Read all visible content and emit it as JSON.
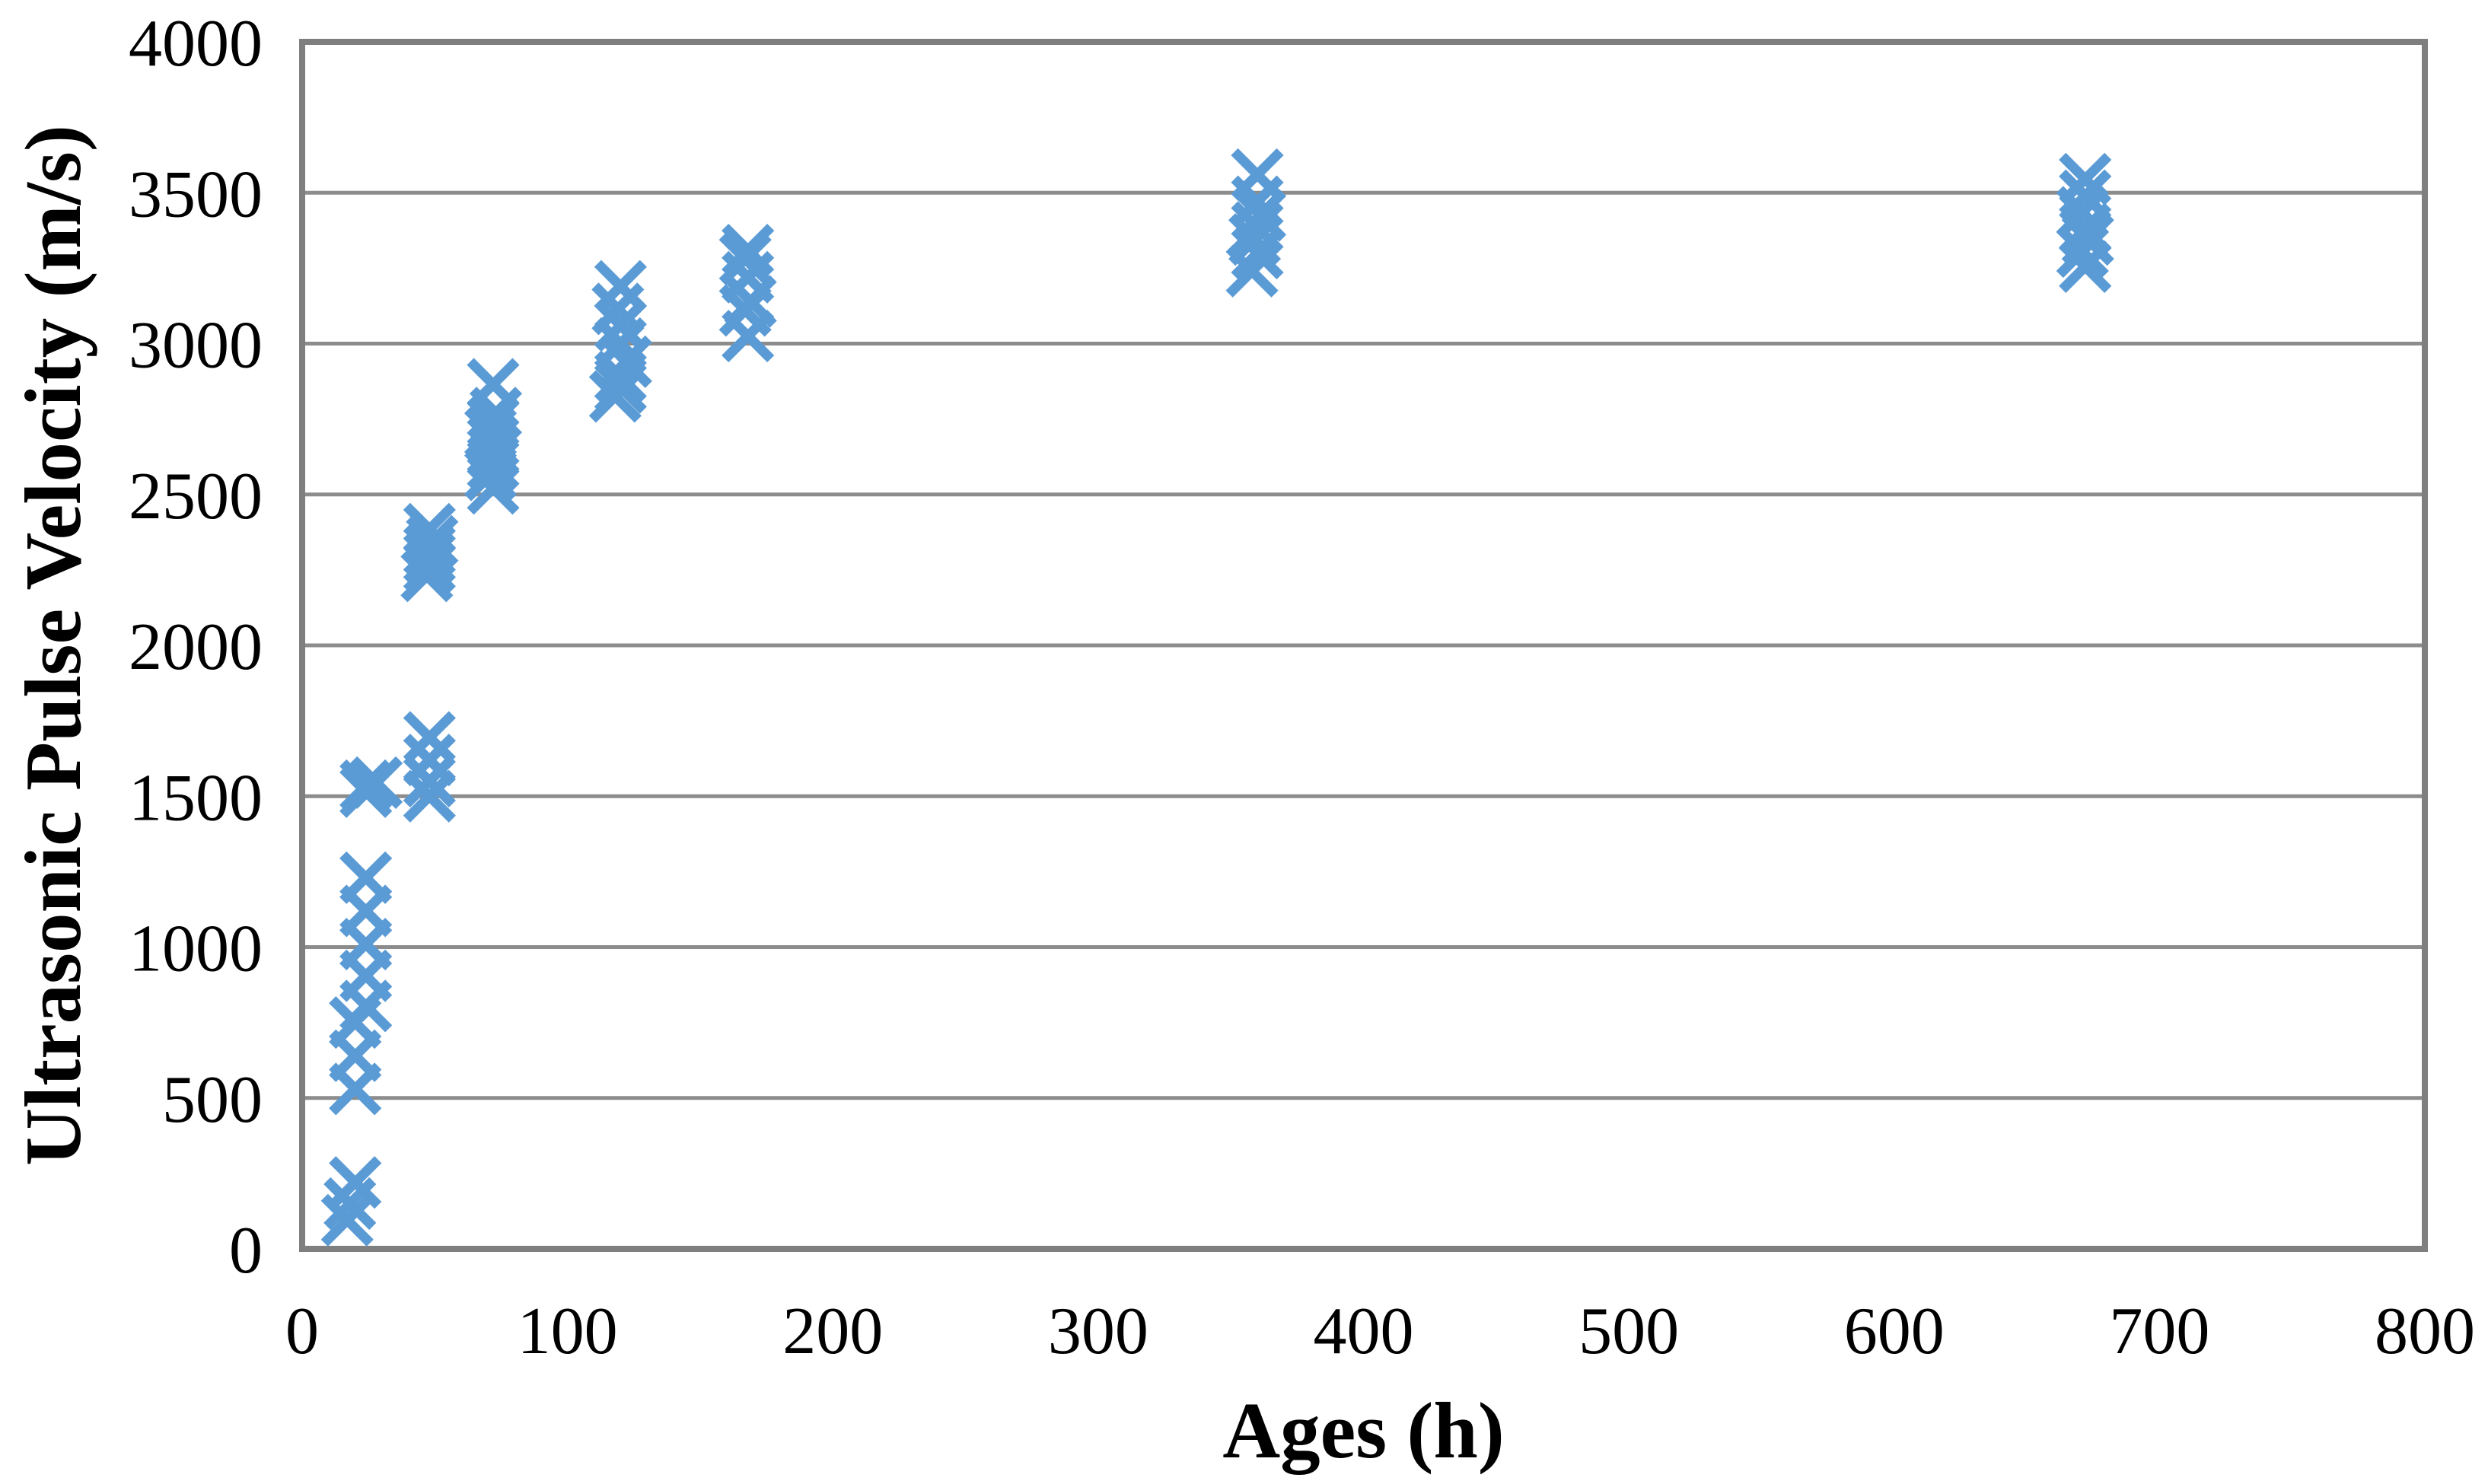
{
  "page": {
    "background_color": "#ffffff",
    "description": "Scatter chart of ultrasonic pulse velocity versus specimen age"
  },
  "chart_data": {
    "type": "scatter",
    "title": "",
    "xlabel": "Ages (h)",
    "ylabel": "Ultrasonic Pulse Velocity (m/s)",
    "xlim": [
      0,
      800
    ],
    "ylim": [
      0,
      4000
    ],
    "x_ticks": [
      0,
      100,
      200,
      300,
      400,
      500,
      600,
      700,
      800
    ],
    "y_ticks": [
      0,
      500,
      1000,
      1500,
      2000,
      2500,
      3000,
      3500,
      4000
    ],
    "grid": "horizontal-only",
    "legend_position": "none",
    "marker_shape": "x",
    "marker_color": "#5B9BD5",
    "marker_size_px": 60,
    "marker_stroke_px": 13,
    "axis_line_color": "#7F7F7F",
    "gridline_color": "#8C8C8C",
    "series": [
      {
        "name": "Ultrasonic Pulse Velocity",
        "points": [
          [
            17,
            95
          ],
          [
            18,
            150
          ],
          [
            20,
            220
          ],
          [
            20,
            530
          ],
          [
            20,
            640
          ],
          [
            20,
            750
          ],
          [
            24,
            805
          ],
          [
            24,
            905
          ],
          [
            24,
            1010
          ],
          [
            24,
            1120
          ],
          [
            24,
            1230
          ],
          [
            24,
            1515
          ],
          [
            24,
            1535
          ],
          [
            28,
            1545
          ],
          [
            48,
            1500
          ],
          [
            48,
            1550
          ],
          [
            48,
            1620
          ],
          [
            48,
            1695
          ],
          [
            47,
            2230
          ],
          [
            48,
            2260
          ],
          [
            48,
            2290
          ],
          [
            48,
            2315
          ],
          [
            49,
            2345
          ],
          [
            48,
            2385
          ],
          [
            72,
            2520
          ],
          [
            71,
            2565
          ],
          [
            72,
            2600
          ],
          [
            72,
            2640
          ],
          [
            72,
            2675
          ],
          [
            71,
            2705
          ],
          [
            72,
            2740
          ],
          [
            73,
            2770
          ],
          [
            72,
            2865
          ],
          [
            118,
            2825
          ],
          [
            120,
            2855
          ],
          [
            120,
            2890
          ],
          [
            122,
            2940
          ],
          [
            120,
            3000
          ],
          [
            120,
            3060
          ],
          [
            119,
            3115
          ],
          [
            120,
            3190
          ],
          [
            168,
            3025
          ],
          [
            167,
            3110
          ],
          [
            169,
            3140
          ],
          [
            168,
            3220
          ],
          [
            167,
            3280
          ],
          [
            168,
            3310
          ],
          [
            358,
            3240
          ],
          [
            360,
            3300
          ],
          [
            359,
            3345
          ],
          [
            360,
            3385
          ],
          [
            361,
            3425
          ],
          [
            360,
            3470
          ],
          [
            360,
            3560
          ],
          [
            672,
            3255
          ],
          [
            671,
            3305
          ],
          [
            673,
            3345
          ],
          [
            672,
            3380
          ],
          [
            671,
            3435
          ],
          [
            672,
            3490
          ],
          [
            672,
            3545
          ]
        ]
      }
    ]
  }
}
